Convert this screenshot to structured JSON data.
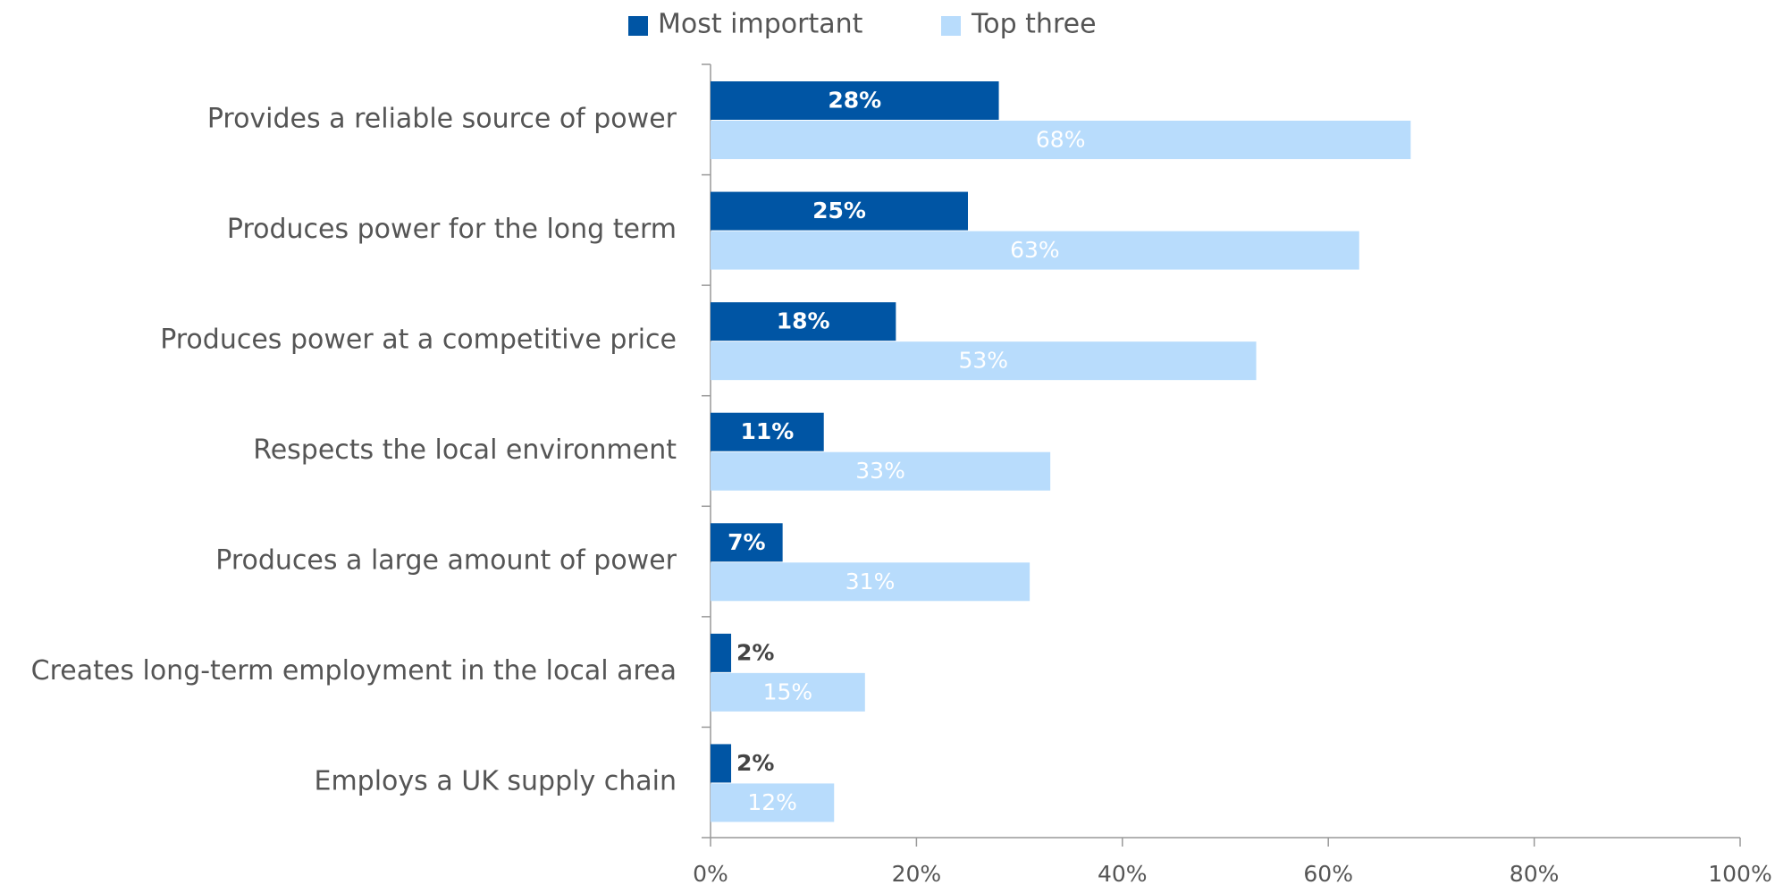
{
  "chart_data": {
    "type": "hbar",
    "categories": [
      "Provides a reliable source of power",
      "Produces power for the long term",
      "Produces power at a competitive price",
      "Respects the local environment",
      "Produces a large amount of power",
      "Creates long-term employment in the local area",
      "Employs a UK supply chain"
    ],
    "series": [
      {
        "name": "Most important",
        "color": "#0055a4",
        "values": [
          28,
          25,
          18,
          11,
          7,
          2,
          2
        ],
        "value_labels": [
          "28%",
          "25%",
          "18%",
          "11%",
          "7%",
          "2%",
          "2%"
        ]
      },
      {
        "name": "Top three",
        "color": "#b8dcfc",
        "values": [
          68,
          63,
          53,
          33,
          31,
          15,
          12
        ],
        "value_labels": [
          "68%",
          "63%",
          "53%",
          "33%",
          "31%",
          "15%",
          "12%"
        ]
      }
    ],
    "xlim": [
      0,
      100
    ],
    "xticks": [
      {
        "value": 0,
        "label": "0%"
      },
      {
        "value": 20,
        "label": "20%"
      },
      {
        "value": 40,
        "label": "40%"
      },
      {
        "value": 60,
        "label": "60%"
      },
      {
        "value": 80,
        "label": "80%"
      },
      {
        "value": 100,
        "label": "100%"
      }
    ],
    "legend": "top"
  }
}
